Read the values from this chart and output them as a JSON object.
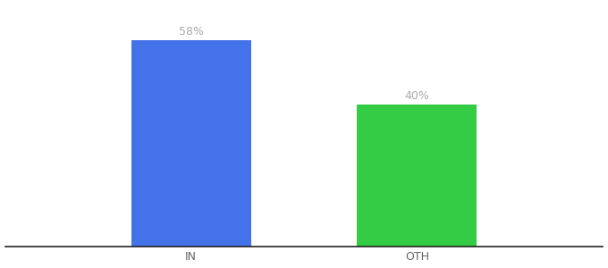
{
  "categories": [
    "IN",
    "OTH"
  ],
  "values": [
    58,
    40
  ],
  "bar_colors": [
    "#4472e8",
    "#33cc44"
  ],
  "label_color": "#aaaaaa",
  "value_labels": [
    "58%",
    "40%"
  ],
  "background_color": "#ffffff",
  "ylim": [
    0,
    68
  ],
  "bar_width": 0.18,
  "bar_positions": [
    0.28,
    0.62
  ],
  "xlim": [
    0.0,
    0.9
  ],
  "label_fontsize": 9,
  "tick_fontsize": 9
}
